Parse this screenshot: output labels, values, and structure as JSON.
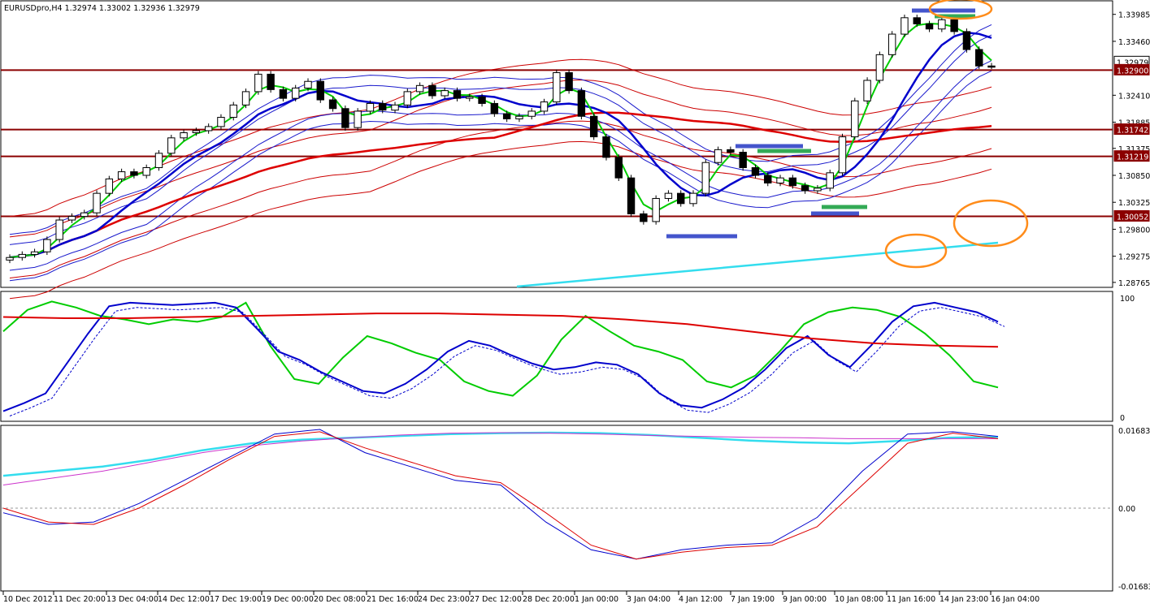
{
  "chart_data": [
    {
      "type": "candlestick",
      "panel": "main",
      "symbol": "EURUSDpro",
      "timeframe": "H4",
      "title": "EURUSDpro,H4  1.32974 1.33002 1.32936 1.32979",
      "ohlc_last": {
        "open": 1.32974,
        "high": 1.33002,
        "low": 1.32936,
        "close": 1.32979
      },
      "ylim": [
        1.287,
        1.3417
      ],
      "yticks": [
        "1.33985",
        "1.33460",
        "1.32410",
        "1.31885",
        "1.31375",
        "1.30850",
        "1.30325",
        "1.29800",
        "1.29275",
        "1.28765"
      ],
      "price_labels": [
        "1.32979",
        "1.32900",
        "1.31742",
        "1.31219",
        "1.30052"
      ],
      "horizontal_levels": [
        1.329,
        1.31742,
        1.31219,
        1.30052
      ],
      "x_labels": [
        "10 Dec 2012",
        "11 Dec 20:00",
        "13 Dec 04:00",
        "14 Dec 12:00",
        "17 Dec 19:00",
        "19 Dec 00:00",
        "20 Dec 08:00",
        "21 Dec 16:00",
        "24 Dec 23:00",
        "27 Dec 12:00",
        "28 Dec 20:00",
        "1 Jan 00:00",
        "3 Jan 04:00",
        "4 Jan 12:00",
        "7 Jan 19:00",
        "9 Jan 00:00",
        "10 Jan 08:00",
        "11 Jan 16:00",
        "14 Jan 23:00",
        "16 Jan 04:00"
      ],
      "close_path": [
        1.2925,
        1.2931,
        1.2936,
        1.296,
        1.2998,
        1.3005,
        1.3012,
        1.305,
        1.3078,
        1.3092,
        1.3085,
        1.31,
        1.3128,
        1.3158,
        1.3168,
        1.3172,
        1.318,
        1.3198,
        1.3222,
        1.3248,
        1.3282,
        1.3252,
        1.3235,
        1.3255,
        1.3268,
        1.3232,
        1.3215,
        1.3178,
        1.321,
        1.3225,
        1.3212,
        1.3222,
        1.3248,
        1.326,
        1.324,
        1.325,
        1.3235,
        1.3238,
        1.3225,
        1.3205,
        1.3195,
        1.32,
        1.321,
        1.3228,
        1.3285,
        1.325,
        1.32,
        1.316,
        1.312,
        1.308,
        1.301,
        1.2995,
        1.304,
        1.305,
        1.303,
        1.305,
        1.311,
        1.3135,
        1.313,
        1.31,
        1.3085,
        1.307,
        1.308,
        1.3065,
        1.3055,
        1.306,
        1.309,
        1.316,
        1.323,
        1.327,
        1.332,
        1.336,
        1.3392,
        1.338,
        1.337,
        1.3388,
        1.3365,
        1.333,
        1.3298,
        1.32979
      ],
      "colors": {
        "bull": "#ffffff",
        "bear": "#000000",
        "green_ma": "#00cc00",
        "blue_ma": "#0000cc",
        "red_ma": "#dd0000",
        "cyan_line": "#33ddee",
        "level_line": "#8b0000",
        "annotation": "#ff8c1a"
      }
    },
    {
      "type": "line",
      "panel": "stochastic",
      "ylim": [
        0,
        100
      ],
      "yticks": [
        "100",
        "0"
      ],
      "series": [
        {
          "color": "#00cc00",
          "values": [
            72,
            90,
            97,
            92,
            85,
            82,
            78,
            82,
            80,
            84,
            96,
            60,
            32,
            28,
            50,
            68,
            62,
            54,
            48,
            30,
            22,
            18,
            35,
            65,
            85,
            72,
            60,
            55,
            48,
            30,
            25,
            35,
            55,
            78,
            88,
            92,
            90,
            84,
            70,
            52,
            30,
            25
          ],
          "style": "solid"
        },
        {
          "color": "#0000cc",
          "values": [
            5,
            12,
            20,
            45,
            70,
            93,
            96,
            95,
            94,
            95,
            96,
            92,
            74,
            55,
            48,
            38,
            30,
            22,
            20,
            28,
            40,
            55,
            64,
            60,
            52,
            45,
            40,
            42,
            46,
            44,
            36,
            20,
            10,
            8,
            15,
            25,
            40,
            58,
            68,
            52,
            42,
            60,
            80,
            93,
            96,
            92,
            88,
            80
          ],
          "style": "solid"
        },
        {
          "color": "#dd0000",
          "values": [
            84,
            83,
            83,
            84,
            85,
            86,
            87,
            87,
            86,
            85,
            82,
            78,
            72,
            66,
            62,
            60,
            59
          ],
          "style": "solid"
        }
      ]
    },
    {
      "type": "line",
      "panel": "macd",
      "ylim": [
        -0.01683,
        0.01683
      ],
      "yticks": [
        "0.01683",
        "0.00",
        "-0.01683"
      ],
      "series": [
        {
          "color": "#33ddee",
          "values": [
            0.007,
            0.008,
            0.009,
            0.0105,
            0.0125,
            0.014,
            0.0148,
            0.0152,
            0.0156,
            0.016,
            0.0162,
            0.0163,
            0.0162,
            0.0158,
            0.0152,
            0.0146,
            0.0142,
            0.014,
            0.0145,
            0.0152,
            0.0154
          ],
          "style": "solid"
        },
        {
          "color": "#cc33cc",
          "values": [
            0.005,
            0.0065,
            0.008,
            0.01,
            0.012,
            0.0135,
            0.0145,
            0.0152,
            0.0158,
            0.0162,
            0.0163,
            0.0162,
            0.016,
            0.0157,
            0.0155,
            0.0153,
            0.0152,
            0.015,
            0.015,
            0.015,
            0.015
          ],
          "style": "solid"
        },
        {
          "color": "#0000cc",
          "values": [
            -0.001,
            -0.0035,
            -0.003,
            0.001,
            0.006,
            0.011,
            0.016,
            0.017,
            0.012,
            0.009,
            0.006,
            0.005,
            -0.003,
            -0.009,
            -0.011,
            -0.009,
            -0.008,
            -0.0075,
            -0.002,
            0.008,
            0.016,
            0.0165,
            0.0155
          ],
          "style": "solid"
        },
        {
          "color": "#dd0000",
          "values": [
            0.0,
            -0.003,
            -0.0035,
            0.0,
            0.005,
            0.0105,
            0.0155,
            0.0165,
            0.013,
            0.01,
            0.007,
            0.0055,
            -0.001,
            -0.008,
            -0.011,
            -0.0095,
            -0.0085,
            -0.008,
            -0.004,
            0.005,
            0.014,
            0.0162,
            0.015
          ],
          "style": "solid"
        }
      ]
    }
  ]
}
